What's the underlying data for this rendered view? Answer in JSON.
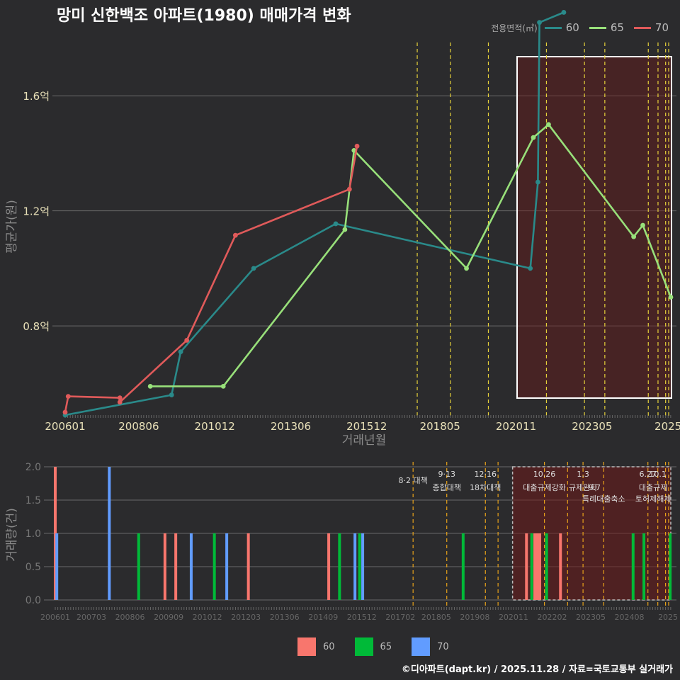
{
  "title": "망미 신한백조 아파트(1980) 매매가격 변화",
  "footer": "©디아파트(dapt.kr) / 2025.11.28 / 자료=국토교통부 실거래가",
  "legend_top": {
    "title": "전용면적(㎡)",
    "items": [
      {
        "label": "60",
        "color": "#2a8a8a"
      },
      {
        "label": "65",
        "color": "#98e07a"
      },
      {
        "label": "70",
        "color": "#e05a5a"
      }
    ]
  },
  "legend_bottom": {
    "items": [
      {
        "label": "60",
        "color": "#f8766d"
      },
      {
        "label": "65",
        "color": "#00ba38"
      },
      {
        "label": "70",
        "color": "#619cff"
      }
    ]
  },
  "chart_data": [
    {
      "type": "line",
      "title": "망미 신한백조 아파트(1980) 매매가격 변화",
      "xlabel": "거래년월",
      "ylabel": "평균가(원)",
      "x_range": [
        2006.0,
        2025.92
      ],
      "ylim": [
        0.49,
        1.8
      ],
      "y_ticks": [
        {
          "v": 0.8,
          "label": "0.8억"
        },
        {
          "v": 1.2,
          "label": "1.2억"
        },
        {
          "v": 1.6,
          "label": "1.6억"
        }
      ],
      "x_ticks": [
        {
          "v": 2006.0,
          "label": "200601"
        },
        {
          "v": 2008.42,
          "label": "200806"
        },
        {
          "v": 2010.92,
          "label": "201012"
        },
        {
          "v": 2013.42,
          "label": "201306"
        },
        {
          "v": 2015.92,
          "label": "201512"
        },
        {
          "v": 2018.33,
          "label": "201805"
        },
        {
          "v": 2020.83,
          "label": "202011"
        },
        {
          "v": 2023.33,
          "label": "202305"
        },
        {
          "v": 2025.83,
          "label": "2025"
        }
      ],
      "series": [
        {
          "name": "60",
          "color": "#2a8a8a",
          "points": [
            [
              2006.0,
              0.49
            ],
            [
              2009.5,
              0.56
            ],
            [
              2009.8,
              0.71
            ],
            [
              2012.2,
              1.0
            ],
            [
              2014.9,
              1.155
            ],
            [
              2021.3,
              1.0
            ],
            [
              2021.55,
              1.3
            ],
            [
              2021.6,
              1.855
            ],
            [
              2022.4,
              1.89
            ]
          ]
        },
        {
          "name": "65",
          "color": "#98e07a",
          "points": [
            [
              2008.8,
              0.59
            ],
            [
              2011.2,
              0.59
            ],
            [
              2015.2,
              1.135
            ],
            [
              2015.5,
              1.41
            ],
            [
              2019.2,
              1.0
            ],
            [
              2021.4,
              1.455
            ],
            [
              2021.9,
              1.5
            ],
            [
              2024.7,
              1.11
            ],
            [
              2025.0,
              1.15
            ],
            [
              2025.92,
              0.9
            ]
          ]
        },
        {
          "name": "70",
          "color": "#e05a5a",
          "points": [
            [
              2006.0,
              0.5
            ],
            [
              2006.1,
              0.555
            ],
            [
              2007.8,
              0.55
            ],
            [
              2007.8,
              0.535
            ],
            [
              2010.0,
              0.75
            ],
            [
              2011.6,
              1.115
            ],
            [
              2015.35,
              1.275
            ],
            [
              2015.6,
              1.425
            ]
          ]
        }
      ],
      "policy_lines": [
        2017.58,
        2018.67,
        2019.92,
        2021.83,
        2023.08,
        2023.75,
        2025.18,
        2025.5,
        2025.75,
        2025.85
      ],
      "highlight": {
        "from": 2020.9,
        "to": 2025.92,
        "y_from": 0.49,
        "y_to": 1.93
      }
    },
    {
      "type": "bar",
      "xlabel": "",
      "ylabel": "거래량(건)",
      "x_range": [
        2006.0,
        2025.92
      ],
      "ylim": [
        0,
        2
      ],
      "y_ticks": [
        {
          "v": 0.0,
          "label": "0.0"
        },
        {
          "v": 0.5,
          "label": "0.5"
        },
        {
          "v": 1.0,
          "label": "1.0"
        },
        {
          "v": 1.5,
          "label": "1.5"
        },
        {
          "v": 2.0,
          "label": "2.0"
        }
      ],
      "x_ticks": [
        {
          "v": 2006.0,
          "label": "200601"
        },
        {
          "v": 2007.17,
          "label": "200703"
        },
        {
          "v": 2008.42,
          "label": "200806"
        },
        {
          "v": 2009.67,
          "label": "200909"
        },
        {
          "v": 2010.92,
          "label": "201012"
        },
        {
          "v": 2012.17,
          "label": "201203"
        },
        {
          "v": 2013.42,
          "label": "201306"
        },
        {
          "v": 2014.67,
          "label": "201409"
        },
        {
          "v": 2015.92,
          "label": "201512"
        },
        {
          "v": 2017.17,
          "label": "201702"
        },
        {
          "v": 2018.33,
          "label": "201805"
        },
        {
          "v": 2019.58,
          "label": "201908"
        },
        {
          "v": 2020.83,
          "label": "202011"
        },
        {
          "v": 2022.08,
          "label": "202202"
        },
        {
          "v": 2023.33,
          "label": "202305"
        },
        {
          "v": 2024.58,
          "label": "202408"
        },
        {
          "v": 2025.83,
          "label": "2025"
        }
      ],
      "bars": [
        {
          "x": 2006.0,
          "series": "60",
          "value": 2
        },
        {
          "x": 2006.05,
          "series": "70",
          "value": 1
        },
        {
          "x": 2007.75,
          "series": "70",
          "value": 2
        },
        {
          "x": 2008.7,
          "series": "65",
          "value": 1
        },
        {
          "x": 2009.55,
          "series": "60",
          "value": 1
        },
        {
          "x": 2009.9,
          "series": "60",
          "value": 1
        },
        {
          "x": 2010.4,
          "series": "70",
          "value": 1
        },
        {
          "x": 2011.15,
          "series": "65",
          "value": 1
        },
        {
          "x": 2011.55,
          "series": "70",
          "value": 1
        },
        {
          "x": 2012.25,
          "series": "60",
          "value": 1
        },
        {
          "x": 2014.85,
          "series": "60",
          "value": 1
        },
        {
          "x": 2015.2,
          "series": "65",
          "value": 1
        },
        {
          "x": 2015.7,
          "series": "70",
          "value": 1
        },
        {
          "x": 2015.85,
          "series": "65",
          "value": 1
        },
        {
          "x": 2015.95,
          "series": "70",
          "value": 1
        },
        {
          "x": 2019.2,
          "series": "65",
          "value": 1
        },
        {
          "x": 2021.25,
          "series": "60",
          "value": 1
        },
        {
          "x": 2021.42,
          "series": "65",
          "value": 1
        },
        {
          "x": 2021.52,
          "series": "60",
          "value": 1
        },
        {
          "x": 2021.6,
          "series": "60",
          "value": 1
        },
        {
          "x": 2021.68,
          "series": "60",
          "value": 1
        },
        {
          "x": 2021.9,
          "series": "65",
          "value": 1
        },
        {
          "x": 2022.35,
          "series": "60",
          "value": 1
        },
        {
          "x": 2024.7,
          "series": "65",
          "value": 1
        },
        {
          "x": 2025.05,
          "series": "65",
          "value": 1
        },
        {
          "x": 2025.9,
          "series": "65",
          "value": 1
        }
      ],
      "policy_lines": [
        2017.58,
        2018.67,
        2019.92,
        2020.33,
        2021.83,
        2022.58,
        2023.08,
        2023.75,
        2025.18,
        2025.5,
        2025.75,
        2025.85
      ],
      "annotations": [
        {
          "x": 2017.58,
          "row": 1,
          "text": "8·2 대책"
        },
        {
          "x": 2018.67,
          "row": 0,
          "text": "9·13"
        },
        {
          "x": 2018.67,
          "row": 2,
          "text": "종합대책"
        },
        {
          "x": 2019.92,
          "row": 0,
          "text": "12·16"
        },
        {
          "x": 2019.92,
          "row": 2,
          "text": "18차대책"
        },
        {
          "x": 2021.83,
          "row": 0,
          "text": "10.26"
        },
        {
          "x": 2021.83,
          "row": 2,
          "text": "대출규제강화"
        },
        {
          "x": 2023.08,
          "row": 0,
          "text": "1.3"
        },
        {
          "x": 2023.08,
          "row": 2,
          "text": "규제완화"
        },
        {
          "x": 2023.45,
          "row": 2,
          "text": "9.7"
        },
        {
          "x": 2023.75,
          "row": 3,
          "text": "특례대출축소"
        },
        {
          "x": 2025.18,
          "row": 0,
          "text": "6.27"
        },
        {
          "x": 2025.5,
          "row": 0,
          "text": "10.1"
        },
        {
          "x": 2025.35,
          "row": 2,
          "text": "대출규제"
        },
        {
          "x": 2025.35,
          "row": 3,
          "text": "토허제해제"
        }
      ],
      "highlight": {
        "from": 2020.8,
        "to": 2025.92
      }
    }
  ]
}
